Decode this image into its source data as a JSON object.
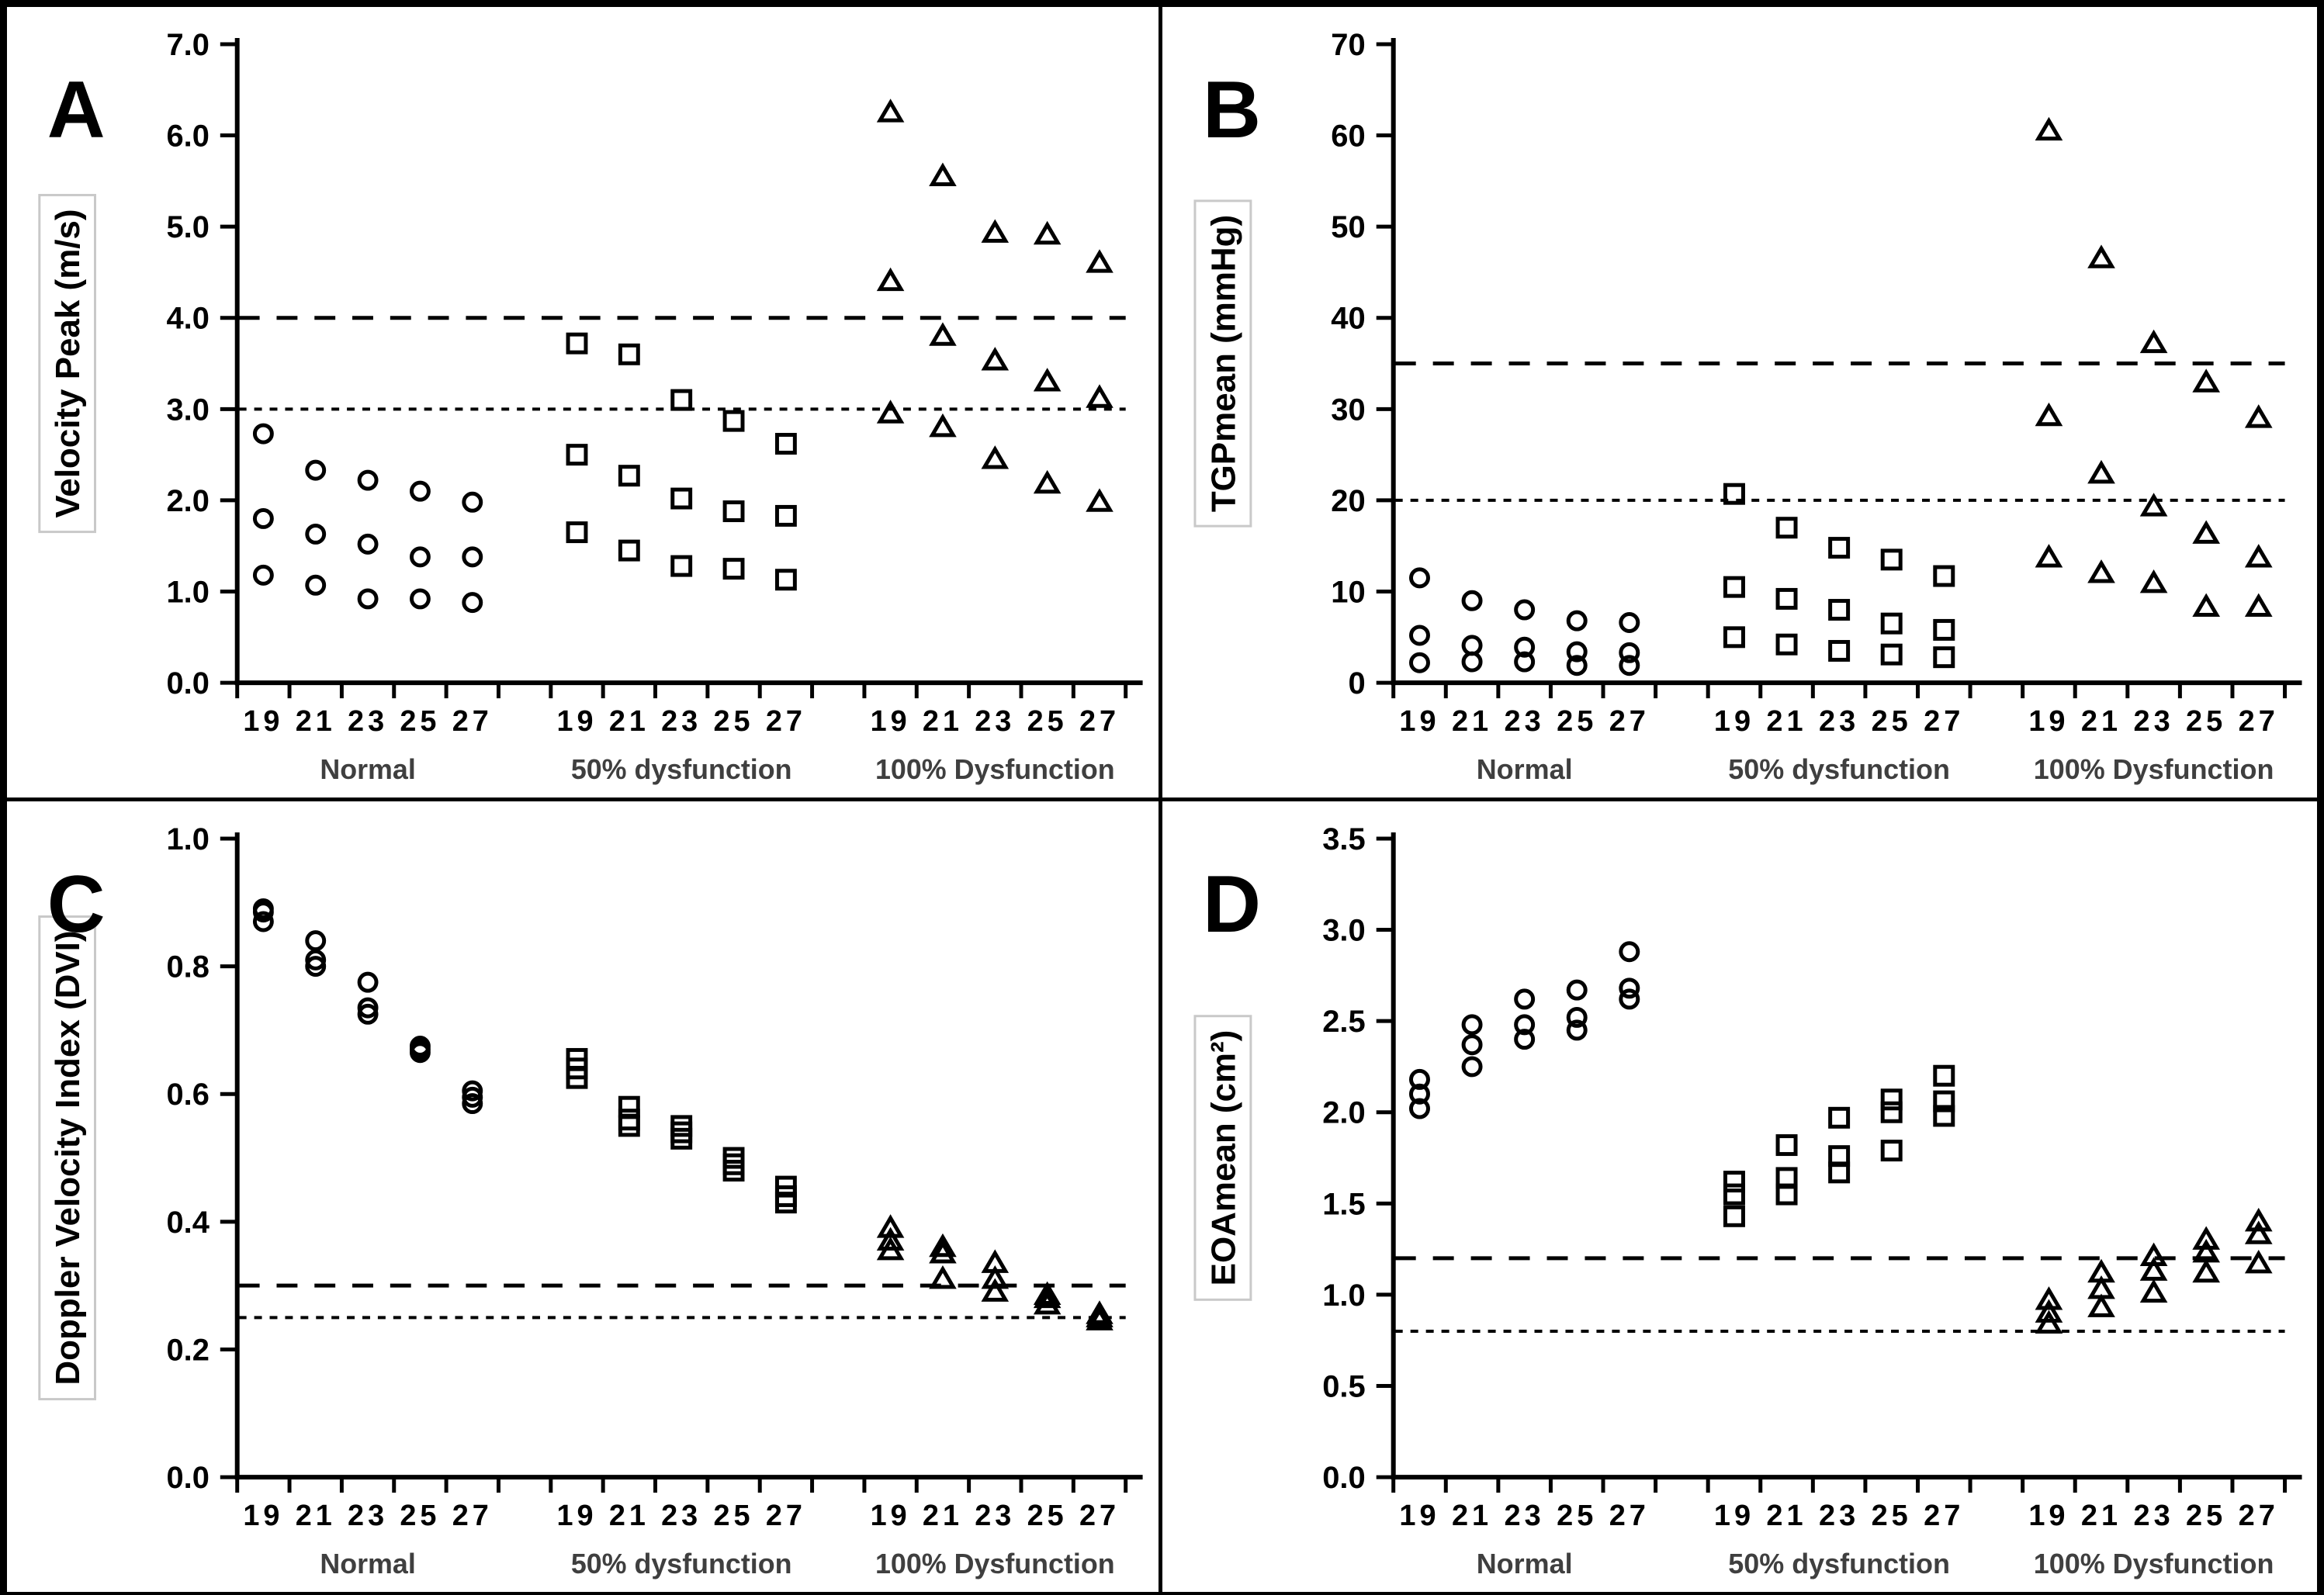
{
  "figure": {
    "colors": {
      "marker": "#000000",
      "axis": "#000000",
      "tick_label": "#000000",
      "group_label": "#3f3f3f",
      "label_box_border": "#c9c9c9",
      "background": "#ffffff",
      "border": "#000000"
    },
    "panel_letters": [
      "A",
      "B",
      "C",
      "D"
    ]
  },
  "chart_data": [
    {
      "panel": "A",
      "type": "scatter",
      "ylabel": "Velocity Peak (m/s)",
      "ylim": [
        0,
        7
      ],
      "ytick_values": [
        0,
        1,
        2,
        3,
        4,
        5,
        6,
        7
      ],
      "ytick_labels": [
        "0.0",
        "1.0",
        "2.0",
        "3.0",
        "4.0",
        "5.0",
        "6.0",
        "7.0"
      ],
      "ref_lines": [
        {
          "value": 4.0,
          "dash": "long"
        },
        {
          "value": 3.0,
          "dash": "fine"
        }
      ],
      "x_sizes": [
        "19",
        "21",
        "23",
        "25",
        "27"
      ],
      "groups": [
        {
          "label": "Normal",
          "marker": "circle",
          "values": [
            [
              2.73,
              1.8,
              1.18
            ],
            [
              2.33,
              1.63,
              1.07
            ],
            [
              2.22,
              1.52,
              0.92
            ],
            [
              2.1,
              1.38,
              0.92
            ],
            [
              1.98,
              1.38,
              0.88
            ]
          ]
        },
        {
          "label": "50% dysfunction",
          "marker": "square",
          "values": [
            [
              3.72,
              2.5,
              1.65
            ],
            [
              3.6,
              2.27,
              1.45
            ],
            [
              3.1,
              2.02,
              1.28
            ],
            [
              2.87,
              1.88,
              1.25
            ],
            [
              2.62,
              1.83,
              1.13
            ]
          ]
        },
        {
          "label": "100% Dysfunction",
          "marker": "triangle",
          "values": [
            [
              6.25,
              4.4,
              2.95
            ],
            [
              5.55,
              3.8,
              2.8
            ],
            [
              4.93,
              3.53,
              2.45
            ],
            [
              4.91,
              3.3,
              2.18
            ],
            [
              4.6,
              3.12,
              1.98
            ]
          ]
        }
      ]
    },
    {
      "panel": "B",
      "type": "scatter",
      "ylabel": "TGPmean (mmHg)",
      "ylim": [
        0,
        70
      ],
      "ytick_values": [
        0,
        10,
        20,
        30,
        40,
        50,
        60,
        70
      ],
      "ytick_labels": [
        "0",
        "10",
        "20",
        "30",
        "40",
        "50",
        "60",
        "70"
      ],
      "ref_lines": [
        {
          "value": 35,
          "dash": "long"
        },
        {
          "value": 20,
          "dash": "fine"
        }
      ],
      "x_sizes": [
        "19",
        "21",
        "23",
        "25",
        "27"
      ],
      "groups": [
        {
          "label": "Normal",
          "marker": "circle",
          "values": [
            [
              11.5,
              5.2,
              2.2
            ],
            [
              9.0,
              4.1,
              2.3
            ],
            [
              8.0,
              3.9,
              2.3
            ],
            [
              6.8,
              3.4,
              1.9
            ],
            [
              6.6,
              3.3,
              1.9
            ]
          ]
        },
        {
          "label": "50% dysfunction",
          "marker": "square",
          "values": [
            [
              20.7,
              10.5,
              5.0
            ],
            [
              17.0,
              9.2,
              4.2
            ],
            [
              14.8,
              8.0,
              3.5
            ],
            [
              13.5,
              6.5,
              3.1
            ],
            [
              11.7,
              5.8,
              2.8
            ]
          ]
        },
        {
          "label": "100% Dysfunction",
          "marker": "triangle",
          "values": [
            [
              60.5,
              29.2,
              13.7
            ],
            [
              46.5,
              22.9,
              12.0
            ],
            [
              37.2,
              19.3,
              10.9
            ],
            [
              32.9,
              16.3,
              8.3
            ],
            [
              29.0,
              13.7,
              8.3
            ]
          ]
        }
      ]
    },
    {
      "panel": "C",
      "type": "scatter",
      "ylabel": "Doppler Velocity Index (DVI)",
      "ylim": [
        0,
        1
      ],
      "ytick_values": [
        0,
        0.2,
        0.4,
        0.6,
        0.8,
        1.0
      ],
      "ytick_labels": [
        "0.0",
        "0.2",
        "0.4",
        "0.6",
        "0.8",
        "1.0"
      ],
      "ref_lines": [
        {
          "value": 0.3,
          "dash": "long"
        },
        {
          "value": 0.25,
          "dash": "fine"
        }
      ],
      "x_sizes": [
        "19",
        "21",
        "23",
        "25",
        "27"
      ],
      "groups": [
        {
          "label": "Normal",
          "marker": "circle",
          "values": [
            [
              0.89,
              0.885,
              0.87
            ],
            [
              0.84,
              0.81,
              0.8
            ],
            [
              0.775,
              0.735,
              0.725
            ],
            [
              0.675,
              0.67,
              0.665
            ],
            [
              0.605,
              0.595,
              0.585
            ]
          ]
        },
        {
          "label": "50% dysfunction",
          "marker": "square",
          "values": [
            [
              0.655,
              0.64,
              0.625
            ],
            [
              0.58,
              0.56,
              0.55
            ],
            [
              0.55,
              0.54,
              0.53
            ],
            [
              0.5,
              0.49,
              0.48
            ],
            [
              0.455,
              0.44,
              0.43
            ]
          ]
        },
        {
          "label": "100% Dysfunction",
          "marker": "triangle",
          "values": [
            [
              0.39,
              0.37,
              0.355
            ],
            [
              0.36,
              0.35,
              0.31
            ],
            [
              0.335,
              0.31,
              0.29
            ],
            [
              0.285,
              0.28,
              0.27
            ],
            [
              0.255,
              0.25,
              0.245
            ]
          ]
        }
      ]
    },
    {
      "panel": "D",
      "type": "scatter",
      "ylabel": "EOAmean (cm²)",
      "ylim": [
        0,
        3.5
      ],
      "ytick_values": [
        0,
        0.5,
        1.0,
        1.5,
        2.0,
        2.5,
        3.0,
        3.5
      ],
      "ytick_labels": [
        "0.0",
        "0.5",
        "1.0",
        "1.5",
        "2.0",
        "2.5",
        "3.0",
        "3.5"
      ],
      "ref_lines": [
        {
          "value": 1.2,
          "dash": "long"
        },
        {
          "value": 0.8,
          "dash": "fine"
        }
      ],
      "x_sizes": [
        "19",
        "21",
        "23",
        "25",
        "27"
      ],
      "groups": [
        {
          "label": "Normal",
          "marker": "circle",
          "values": [
            [
              2.18,
              2.1,
              2.02
            ],
            [
              2.48,
              2.37,
              2.25
            ],
            [
              2.62,
              2.48,
              2.4
            ],
            [
              2.67,
              2.52,
              2.45
            ],
            [
              2.88,
              2.68,
              2.62
            ]
          ]
        },
        {
          "label": "50% dysfunction",
          "marker": "square",
          "values": [
            [
              1.62,
              1.55,
              1.43
            ],
            [
              1.82,
              1.64,
              1.55
            ],
            [
              1.97,
              1.76,
              1.67
            ],
            [
              2.07,
              2.0,
              1.79
            ],
            [
              2.2,
              2.06,
              1.98
            ]
          ]
        },
        {
          "label": "100% Dysfunction",
          "marker": "triangle",
          "values": [
            [
              0.97,
              0.9,
              0.84
            ],
            [
              1.12,
              1.03,
              0.93
            ],
            [
              1.21,
              1.13,
              1.01
            ],
            [
              1.3,
              1.23,
              1.12
            ],
            [
              1.4,
              1.33,
              1.17
            ]
          ]
        }
      ]
    }
  ]
}
